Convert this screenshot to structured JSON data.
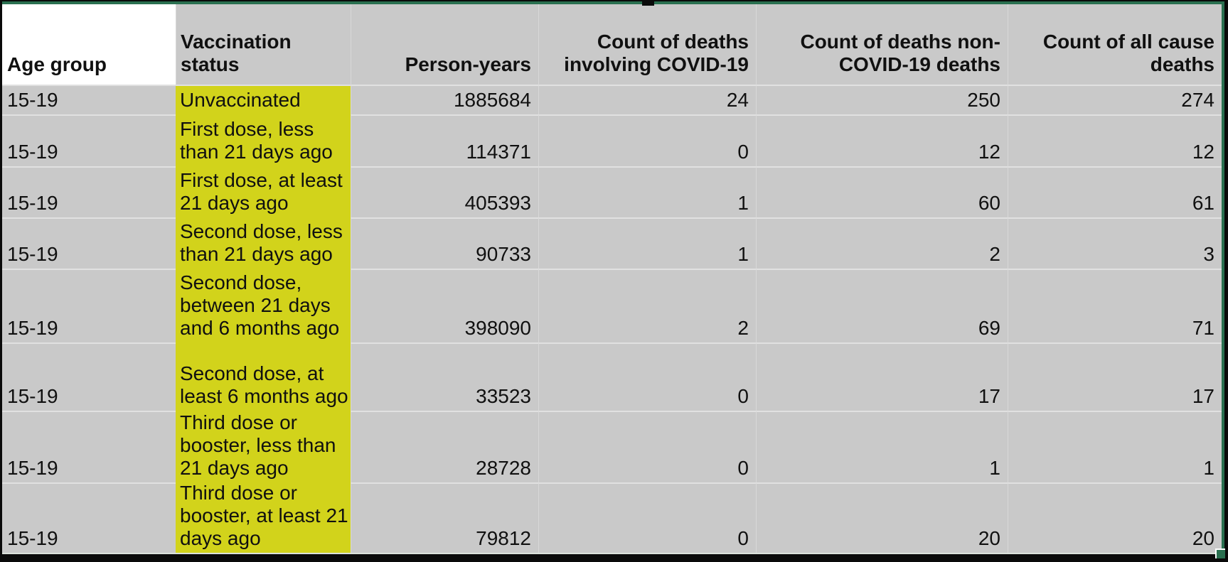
{
  "sheet": {
    "columns": [
      {
        "id": "age_group",
        "label": "Age group"
      },
      {
        "id": "vaccination_status",
        "label": "Vaccination status"
      },
      {
        "id": "person_years",
        "label": "Person-years"
      },
      {
        "id": "deaths_involving_covid",
        "label": "Count of deaths involving COVID-19"
      },
      {
        "id": "deaths_non_covid",
        "label": "Count of deaths non-COVID-19 deaths"
      },
      {
        "id": "deaths_all_cause",
        "label": "Count of all cause deaths"
      }
    ],
    "rows": [
      [
        "15-19",
        "Unvaccinated",
        "1885684",
        "24",
        "250",
        "274"
      ],
      [
        "15-19",
        "First dose, less than 21 days ago",
        "114371",
        "0",
        "12",
        "12"
      ],
      [
        "15-19",
        "First dose, at least 21 days ago",
        "405393",
        "1",
        "60",
        "61"
      ],
      [
        "15-19",
        "Second dose, less than 21 days ago",
        "90733",
        "1",
        "2",
        "3"
      ],
      [
        "15-19",
        "Second dose, between 21 days and 6 months ago",
        "398090",
        "2",
        "69",
        "71"
      ],
      [
        "15-19",
        "Second dose, at least 6 months ago",
        "33523",
        "0",
        "17",
        "17"
      ],
      [
        "15-19",
        "Third dose or booster, less than 21 days ago",
        "28728",
        "0",
        "1",
        "1"
      ],
      [
        "15-19",
        "Third dose or booster, at least 21 days ago",
        "79812",
        "0",
        "20",
        "20"
      ]
    ]
  },
  "colors": {
    "highlight_yellow": "#d2d31b",
    "grid_gray": "#c9c9c9",
    "selection_green": "#2a7050",
    "header_cell_white": "#ffffff",
    "gridline": "#e1e1e1"
  }
}
